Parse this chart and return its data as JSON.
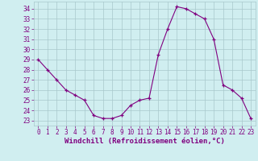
{
  "x": [
    0,
    1,
    2,
    3,
    4,
    5,
    6,
    7,
    8,
    9,
    10,
    11,
    12,
    13,
    14,
    15,
    16,
    17,
    18,
    19,
    20,
    21,
    22,
    23
  ],
  "y": [
    29,
    28,
    27,
    26,
    25.5,
    25,
    23.5,
    23.2,
    23.2,
    23.5,
    24.5,
    25,
    25.2,
    29.5,
    32,
    34.2,
    34.0,
    33.5,
    33.0,
    31.0,
    26.5,
    26.0,
    25.2,
    23.2
  ],
  "line_color": "#800080",
  "marker": "P",
  "bg_color": "#d0eef0",
  "grid_color": "#a8c8cc",
  "xlabel": "Windchill (Refroidissement éolien,°C)",
  "xlabel_color": "#800080",
  "yticks": [
    23,
    24,
    25,
    26,
    27,
    28,
    29,
    30,
    31,
    32,
    33,
    34
  ],
  "xticks": [
    0,
    1,
    2,
    3,
    4,
    5,
    6,
    7,
    8,
    9,
    10,
    11,
    12,
    13,
    14,
    15,
    16,
    17,
    18,
    19,
    20,
    21,
    22,
    23
  ],
  "ylim": [
    22.5,
    34.7
  ],
  "xlim": [
    -0.5,
    23.5
  ],
  "tick_fontsize": 5.5,
  "xlabel_fontsize": 6.5
}
